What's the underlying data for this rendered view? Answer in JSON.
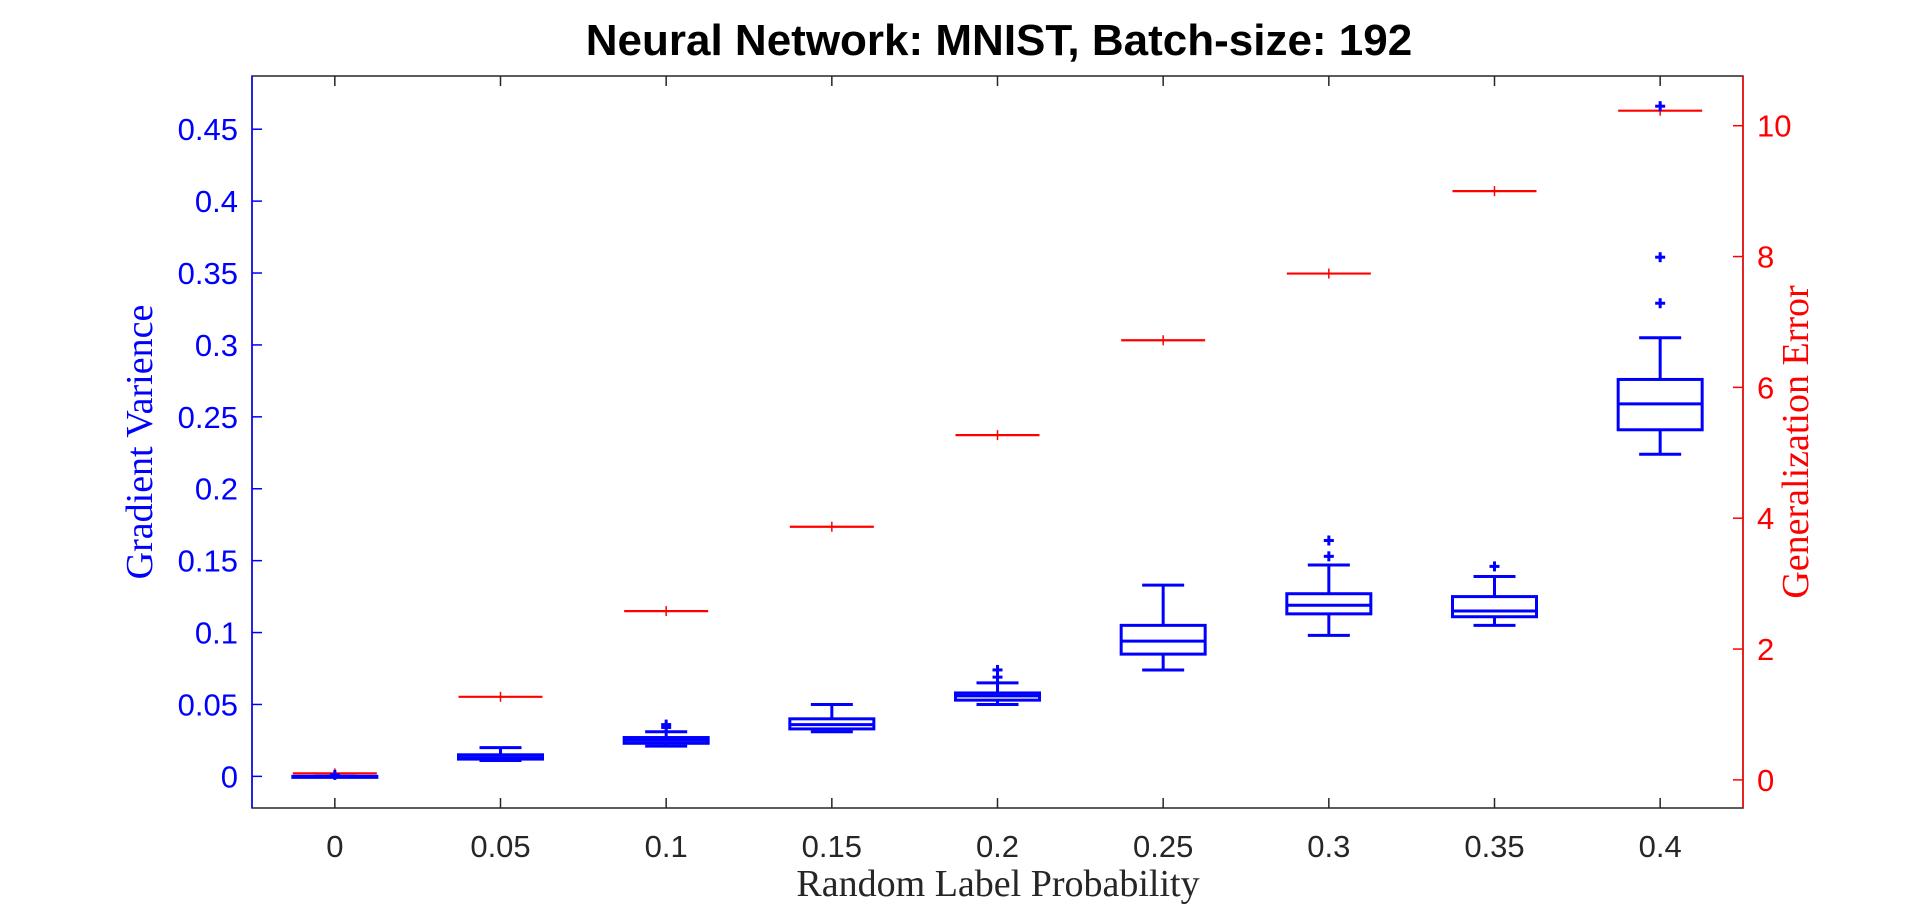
{
  "chart_data": {
    "type": "box",
    "title": "Neural Network: MNIST, Batch-size: 192",
    "xlabel": "Random Label Probability",
    "ylabel_left": "Gradient Varience",
    "ylabel_right": "Generalization Error",
    "categories": [
      "0",
      "0.05",
      "0.1",
      "0.15",
      "0.2",
      "0.25",
      "0.3",
      "0.35",
      "0.4"
    ],
    "left_axis": {
      "lim": [
        -0.022,
        0.487
      ],
      "ticks": [
        0,
        0.05,
        0.1,
        0.15,
        0.2,
        0.25,
        0.3,
        0.35,
        0.4,
        0.45
      ],
      "tick_labels": [
        "0",
        "0.05",
        "0.1",
        "0.15",
        "0.2",
        "0.25",
        "0.3",
        "0.35",
        "0.4",
        "0.45"
      ],
      "color": "#0000ff"
    },
    "right_axis": {
      "lim": [
        -0.43,
        10.76
      ],
      "ticks": [
        0,
        2,
        4,
        6,
        8,
        10
      ],
      "tick_labels": [
        "0",
        "2",
        "4",
        "6",
        "8",
        "10"
      ],
      "color": "#ff0000"
    },
    "series": [
      {
        "name": "Gradient Varience",
        "axis": "left",
        "color": "#0000ff",
        "boxes": [
          {
            "whisker_low": 0.0,
            "q1": 0.0,
            "median": 0.0,
            "q3": 0.0,
            "whisker_high": 0.0,
            "outliers": [
              0.001
            ]
          },
          {
            "whisker_low": 0.011,
            "q1": 0.012,
            "median": 0.013,
            "q3": 0.015,
            "whisker_high": 0.02,
            "outliers": []
          },
          {
            "whisker_low": 0.021,
            "q1": 0.023,
            "median": 0.025,
            "q3": 0.027,
            "whisker_high": 0.031,
            "outliers": [
              0.034,
              0.036
            ]
          },
          {
            "whisker_low": 0.031,
            "q1": 0.033,
            "median": 0.036,
            "q3": 0.04,
            "whisker_high": 0.05,
            "outliers": []
          },
          {
            "whisker_low": 0.05,
            "q1": 0.053,
            "median": 0.056,
            "q3": 0.058,
            "whisker_high": 0.065,
            "outliers": [
              0.069,
              0.074
            ]
          },
          {
            "whisker_low": 0.074,
            "q1": 0.085,
            "median": 0.094,
            "q3": 0.105,
            "whisker_high": 0.133,
            "outliers": []
          },
          {
            "whisker_low": 0.098,
            "q1": 0.113,
            "median": 0.119,
            "q3": 0.127,
            "whisker_high": 0.147,
            "outliers": [
              0.153,
              0.164
            ]
          },
          {
            "whisker_low": 0.105,
            "q1": 0.111,
            "median": 0.115,
            "q3": 0.125,
            "whisker_high": 0.139,
            "outliers": [
              0.146
            ]
          },
          {
            "whisker_low": 0.224,
            "q1": 0.241,
            "median": 0.259,
            "q3": 0.276,
            "whisker_high": 0.305,
            "outliers": [
              0.329,
              0.361,
              0.466
            ]
          }
        ]
      },
      {
        "name": "Generalization Error",
        "axis": "right",
        "color": "#ff0000",
        "values": [
          0.1,
          1.27,
          2.58,
          3.87,
          5.27,
          6.72,
          7.74,
          9.0,
          10.23
        ]
      }
    ],
    "grid": false,
    "legend": "none"
  }
}
